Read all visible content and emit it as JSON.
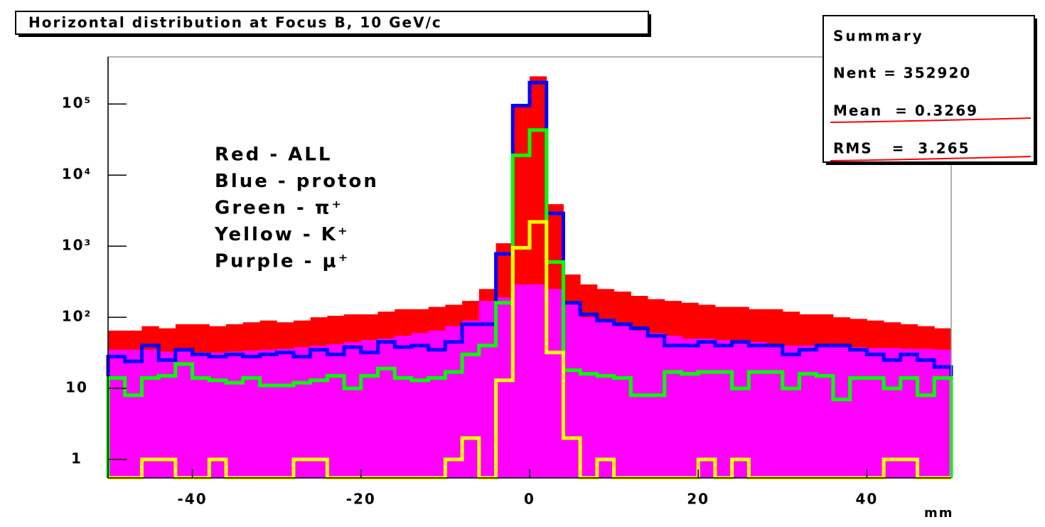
{
  "chart_data": {
    "type": "histogram",
    "title": "Horizontal distribution at Focus B, 10 GeV/c",
    "x_label": "mm",
    "bins": [
      -50,
      -48,
      -46,
      -44,
      -42,
      -40,
      -38,
      -36,
      -34,
      -32,
      -30,
      -28,
      -26,
      -24,
      -22,
      -20,
      -18,
      -16,
      -14,
      -12,
      -10,
      -8,
      -6,
      -4,
      -2,
      0,
      2,
      4,
      6,
      8,
      10,
      12,
      14,
      16,
      18,
      20,
      22,
      24,
      26,
      28,
      30,
      32,
      34,
      36,
      38,
      40,
      42,
      44,
      46,
      48,
      50
    ],
    "series": [
      {
        "name": "Red - ALL",
        "color": "#ff0000",
        "fill": true,
        "values": [
          65,
          65,
          75,
          70,
          80,
          80,
          75,
          80,
          85,
          90,
          85,
          90,
          100,
          105,
          110,
          110,
          120,
          130,
          130,
          140,
          150,
          170,
          250,
          1100,
          100000,
          245000,
          3900,
          400,
          290,
          250,
          230,
          200,
          180,
          170,
          160,
          150,
          140,
          140,
          130,
          130,
          120,
          110,
          110,
          100,
          95,
          90,
          85,
          80,
          75,
          70
        ]
      },
      {
        "name": "Purple - μ⁺",
        "color": "#ff00ff",
        "fill": true,
        "values": [
          35,
          35,
          35,
          33,
          33,
          32,
          32,
          33,
          34,
          35,
          36,
          38,
          40,
          42,
          45,
          48,
          50,
          55,
          60,
          65,
          75,
          90,
          170,
          190,
          290,
          290,
          250,
          150,
          100,
          85,
          75,
          65,
          60,
          55,
          50,
          50,
          48,
          45,
          45,
          42,
          40,
          40,
          40,
          38,
          38,
          37,
          37,
          36,
          36,
          35
        ]
      },
      {
        "name": "Blue - proton",
        "color": "#0000ff",
        "fill": false,
        "values": [
          28,
          24,
          40,
          25,
          35,
          30,
          28,
          30,
          28,
          30,
          32,
          28,
          35,
          30,
          38,
          32,
          45,
          38,
          40,
          35,
          45,
          80,
          80,
          780,
          95000,
          200000,
          2900,
          160,
          110,
          90,
          80,
          70,
          55,
          40,
          40,
          45,
          40,
          45,
          40,
          40,
          30,
          35,
          40,
          40,
          35,
          30,
          25,
          30,
          25,
          20
        ]
      },
      {
        "name": "Green - π⁺",
        "color": "#00ff00",
        "fill": false,
        "values": [
          14,
          8,
          14,
          15,
          22,
          14,
          13,
          12,
          14,
          11,
          11,
          12,
          13,
          15,
          10,
          15,
          19,
          14,
          13,
          14,
          17,
          30,
          40,
          160,
          19000,
          43000,
          600,
          18,
          16,
          15,
          14,
          8,
          8,
          17,
          16,
          17,
          17,
          10,
          17,
          17,
          10,
          16,
          15,
          7,
          14,
          14,
          10,
          14,
          8,
          14
        ]
      },
      {
        "name": "Yellow - K⁺",
        "color": "#ffff00",
        "fill": false,
        "values": [
          0,
          0,
          1,
          1,
          0,
          0,
          1,
          0,
          0,
          0,
          0,
          1,
          1,
          0,
          0,
          0,
          0,
          0,
          0,
          0,
          1,
          2,
          0,
          13,
          950,
          2200,
          32,
          2,
          0,
          1,
          0,
          0,
          0,
          0,
          0,
          1,
          0,
          1,
          0,
          0,
          0,
          0,
          0,
          0,
          0,
          0,
          1,
          1,
          0,
          0
        ]
      }
    ],
    "xlim": [
      -50,
      50
    ],
    "xticks": [
      -40,
      -20,
      0,
      20,
      40
    ],
    "ylim": [
      0.55,
      460000
    ],
    "log_y": true,
    "yticks": [
      1,
      10,
      {
        "value": 100,
        "label": "10²"
      },
      {
        "value": 1000,
        "label": "10³"
      },
      {
        "value": 10000,
        "label": "10⁴"
      },
      {
        "value": 100000,
        "label": "10⁵"
      }
    ],
    "stats": {
      "title": "Summary",
      "lines": [
        "Nent = 352920",
        "Mean  = 0.3269",
        "RMS   =  3.265"
      ]
    }
  }
}
